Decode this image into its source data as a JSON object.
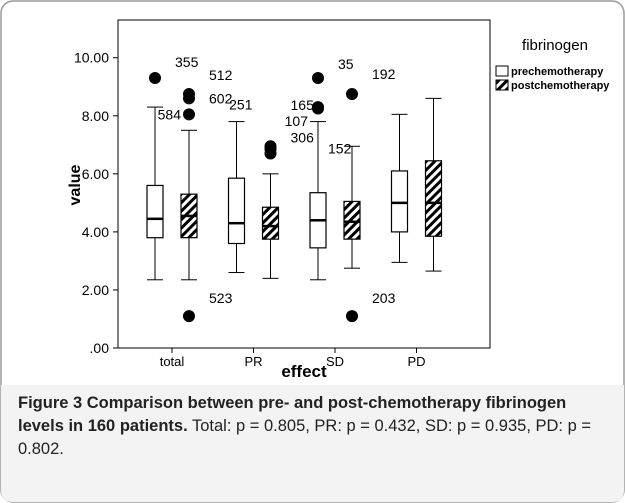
{
  "chart_data": {
    "type": "box",
    "x_label": "effect",
    "y_label": "value",
    "categories": [
      "total",
      "PR",
      "SD",
      "PD"
    ],
    "ylim": [
      0,
      11.3
    ],
    "yticks": [
      {
        "value": 0,
        "label": ".00"
      },
      {
        "value": 2,
        "label": "2.00"
      },
      {
        "value": 4,
        "label": "4.00"
      },
      {
        "value": 6,
        "label": "6.00"
      },
      {
        "value": 8,
        "label": "8.00"
      },
      {
        "value": 10,
        "label": "10.00"
      }
    ],
    "legend_title": "fibrinogen",
    "legend_position": "upper right",
    "series": [
      {
        "name": "prechemotherapy",
        "color": "#ffffff",
        "hatch": false,
        "boxes": [
          {
            "whislo": 2.35,
            "q1": 3.8,
            "med": 4.45,
            "q3": 5.6,
            "whishi": 8.3,
            "fliers": [
              {
                "value": 9.3,
                "id": "355"
              }
            ]
          },
          {
            "whislo": 2.6,
            "q1": 3.6,
            "med": 4.3,
            "q3": 5.85,
            "whishi": 7.8,
            "fliers": []
          },
          {
            "whislo": 2.35,
            "q1": 3.45,
            "med": 4.4,
            "q3": 5.35,
            "whishi": 7.8,
            "fliers": [
              {
                "value": 9.3,
                "id": "35"
              },
              {
                "value": 8.3,
                "id": "107"
              },
              {
                "value": 8.25,
                "id": "152"
              }
            ]
          },
          {
            "whislo": 2.95,
            "q1": 4.0,
            "med": 5.0,
            "q3": 6.1,
            "whishi": 8.05,
            "fliers": []
          }
        ]
      },
      {
        "name": "postchemotherapy",
        "color": "#000000",
        "hatch": true,
        "boxes": [
          {
            "whislo": 2.35,
            "q1": 3.8,
            "med": 4.55,
            "q3": 5.3,
            "whishi": 7.5,
            "fliers": [
              {
                "value": 8.75,
                "id": "512"
              },
              {
                "value": 8.6,
                "id": "602"
              },
              {
                "value": 8.05,
                "id": "584"
              },
              {
                "value": 1.1,
                "id": "523"
              }
            ]
          },
          {
            "whislo": 2.4,
            "q1": 3.75,
            "med": 4.2,
            "q3": 4.85,
            "whishi": 6.0,
            "fliers": [
              {
                "value": 6.95,
                "id": "251"
              },
              {
                "value": 6.85,
                "id": "165"
              },
              {
                "value": 6.7,
                "id": "306"
              }
            ]
          },
          {
            "whislo": 2.75,
            "q1": 3.75,
            "med": 4.35,
            "q3": 5.05,
            "whishi": 6.95,
            "fliers": [
              {
                "value": 8.75,
                "id": "192"
              },
              {
                "value": 1.1,
                "id": "203"
              }
            ]
          },
          {
            "whislo": 2.65,
            "q1": 3.85,
            "med": 5.0,
            "q3": 6.45,
            "whishi": 8.6,
            "fliers": []
          }
        ]
      }
    ]
  },
  "caption": {
    "title": "Figure 3 Comparison between pre- and post-chemotherapy fibrinogen levels in 160 patients.",
    "text": "Total: p = 0.805, PR: p = 0.432, SD: p = 0.935, PD: p = 0.802."
  }
}
